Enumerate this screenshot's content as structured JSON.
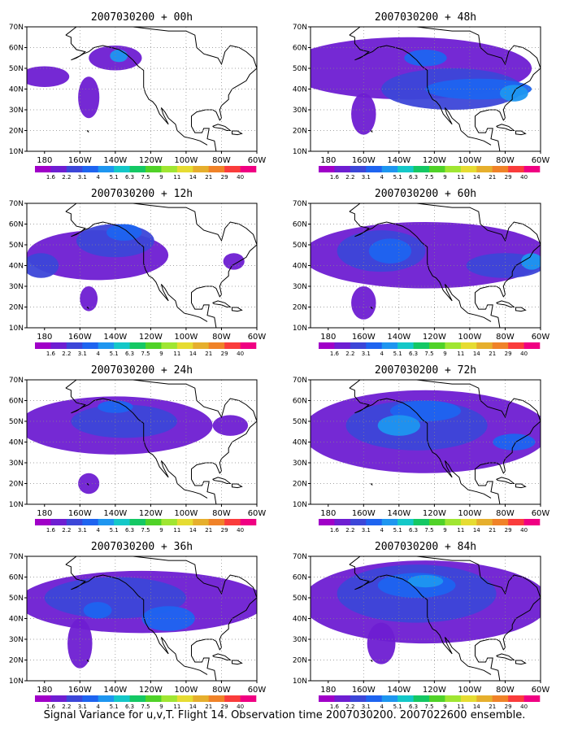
{
  "chart_data": {
    "type": "heatmap",
    "caption": "Signal Variance for u,v,T. Flight 14. Observation time 2007030200. 2007022600 ensemble.",
    "x_ticks": [
      "180",
      "160W",
      "140W",
      "120W",
      "100W",
      "80W",
      "60W"
    ],
    "y_ticks": [
      "10N",
      "20N",
      "30N",
      "40N",
      "50N",
      "60N",
      "70N"
    ],
    "xlim": [
      -190,
      -60
    ],
    "ylim": [
      10,
      70
    ],
    "grid": "dotted",
    "colorbar": {
      "labels": [
        "1.6",
        "2.2",
        "3.1",
        "4",
        "5.1",
        "6.3",
        "7.5",
        "9",
        "11",
        "14",
        "21",
        "29",
        "40"
      ],
      "colors": [
        "#a000c8",
        "#6e1ed2",
        "#3c46d8",
        "#1e64f0",
        "#1e96f0",
        "#14c8c8",
        "#14c864",
        "#50d228",
        "#a0e632",
        "#e6dc32",
        "#e6af2d",
        "#f08228",
        "#fa3c3c",
        "#f00082"
      ]
    },
    "panels": [
      {
        "title": "2007030200 + 00h",
        "blobs": [
          {
            "x": -140,
            "y": 55,
            "rx": 15,
            "ry": 6,
            "level": 1
          },
          {
            "x": -180,
            "y": 46,
            "rx": 14,
            "ry": 5,
            "level": 1
          },
          {
            "x": -155,
            "y": 36,
            "rx": 6,
            "ry": 10,
            "level": 1
          },
          {
            "x": -138,
            "y": 56,
            "rx": 5,
            "ry": 3,
            "level": 4
          }
        ]
      },
      {
        "title": "2007030200 + 48h",
        "blobs": [
          {
            "x": -135,
            "y": 50,
            "rx": 70,
            "ry": 15,
            "level": 1
          },
          {
            "x": -160,
            "y": 28,
            "rx": 7,
            "ry": 10,
            "level": 1
          },
          {
            "x": -110,
            "y": 40,
            "rx": 40,
            "ry": 10,
            "level": 2
          },
          {
            "x": -95,
            "y": 40,
            "rx": 30,
            "ry": 5,
            "level": 3
          },
          {
            "x": -125,
            "y": 55,
            "rx": 12,
            "ry": 4,
            "level": 3
          },
          {
            "x": -75,
            "y": 38,
            "rx": 8,
            "ry": 4,
            "level": 4
          }
        ]
      },
      {
        "title": "2007030200 + 12h",
        "blobs": [
          {
            "x": -150,
            "y": 45,
            "rx": 40,
            "ry": 12,
            "level": 1
          },
          {
            "x": -140,
            "y": 52,
            "rx": 22,
            "ry": 8,
            "level": 2
          },
          {
            "x": -135,
            "y": 56,
            "rx": 10,
            "ry": 4,
            "level": 3
          },
          {
            "x": -155,
            "y": 24,
            "rx": 5,
            "ry": 6,
            "level": 1
          },
          {
            "x": -73,
            "y": 42,
            "rx": 6,
            "ry": 4,
            "level": 1
          },
          {
            "x": -182,
            "y": 40,
            "rx": 10,
            "ry": 6,
            "level": 2
          }
        ]
      },
      {
        "title": "2007030200 + 60h",
        "blobs": [
          {
            "x": -125,
            "y": 45,
            "rx": 70,
            "ry": 16,
            "level": 1
          },
          {
            "x": -150,
            "y": 47,
            "rx": 25,
            "ry": 10,
            "level": 2
          },
          {
            "x": -145,
            "y": 47,
            "rx": 12,
            "ry": 6,
            "level": 3
          },
          {
            "x": -160,
            "y": 22,
            "rx": 7,
            "ry": 8,
            "level": 1
          },
          {
            "x": -80,
            "y": 40,
            "rx": 22,
            "ry": 6,
            "level": 2
          },
          {
            "x": -65,
            "y": 42,
            "rx": 6,
            "ry": 4,
            "level": 4
          }
        ]
      },
      {
        "title": "2007030200 + 24h",
        "blobs": [
          {
            "x": -140,
            "y": 48,
            "rx": 55,
            "ry": 14,
            "level": 1
          },
          {
            "x": -135,
            "y": 50,
            "rx": 30,
            "ry": 8,
            "level": 2
          },
          {
            "x": -140,
            "y": 57,
            "rx": 10,
            "ry": 3,
            "level": 3
          },
          {
            "x": -155,
            "y": 20,
            "rx": 6,
            "ry": 5,
            "level": 1
          },
          {
            "x": -75,
            "y": 48,
            "rx": 10,
            "ry": 5,
            "level": 1
          }
        ]
      },
      {
        "title": "2007030200 + 72h",
        "blobs": [
          {
            "x": -125,
            "y": 45,
            "rx": 70,
            "ry": 20,
            "level": 1
          },
          {
            "x": -130,
            "y": 48,
            "rx": 40,
            "ry": 12,
            "level": 2
          },
          {
            "x": -125,
            "y": 55,
            "rx": 20,
            "ry": 5,
            "level": 3
          },
          {
            "x": -140,
            "y": 48,
            "rx": 12,
            "ry": 5,
            "level": 4
          },
          {
            "x": -75,
            "y": 40,
            "rx": 12,
            "ry": 4,
            "level": 3
          }
        ]
      },
      {
        "title": "2007030200 + 36h",
        "blobs": [
          {
            "x": -125,
            "y": 48,
            "rx": 70,
            "ry": 15,
            "level": 1
          },
          {
            "x": -140,
            "y": 50,
            "rx": 40,
            "ry": 10,
            "level": 2
          },
          {
            "x": -110,
            "y": 40,
            "rx": 15,
            "ry": 6,
            "level": 3
          },
          {
            "x": -160,
            "y": 28,
            "rx": 7,
            "ry": 12,
            "level": 1
          },
          {
            "x": -150,
            "y": 44,
            "rx": 8,
            "ry": 4,
            "level": 3
          }
        ]
      },
      {
        "title": "2007030200 + 84h",
        "blobs": [
          {
            "x": -125,
            "y": 48,
            "rx": 70,
            "ry": 20,
            "level": 1
          },
          {
            "x": -130,
            "y": 52,
            "rx": 45,
            "ry": 14,
            "level": 2
          },
          {
            "x": -130,
            "y": 56,
            "rx": 22,
            "ry": 6,
            "level": 3
          },
          {
            "x": -125,
            "y": 58,
            "rx": 10,
            "ry": 3,
            "level": 4
          },
          {
            "x": -150,
            "y": 28,
            "rx": 8,
            "ry": 10,
            "level": 1
          }
        ]
      }
    ]
  }
}
